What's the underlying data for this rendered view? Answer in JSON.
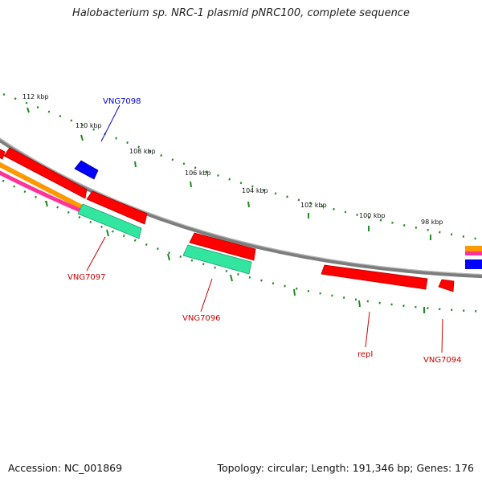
{
  "title": "Halobacterium sp. NRC-1 plasmid pNRC100, complete sequence",
  "footer": {
    "accession": "Accession: NC_001869",
    "summary": "Topology: circular; Length: 191,346 bp; Genes: 176"
  },
  "colors": {
    "backbone": "#888888",
    "forward_gene": "#0000ff",
    "reverse_gene": "#ff0000",
    "rna_feature": "#33e6a0",
    "orange_track": "#ff9900",
    "pink_track": "#ff3399",
    "tick": "#228822",
    "forward_label": "#0000cc",
    "reverse_label": "#cc0000"
  },
  "scale_labels": [
    "112 kbp",
    "110 kbp",
    "108 kbp",
    "106 kbp",
    "104 kbp",
    "102 kbp",
    "100 kbp",
    "98 kbp"
  ],
  "genes": [
    {
      "label": "VNG7098",
      "strand": "forward"
    },
    {
      "label": "VNG7097",
      "strand": "reverse"
    },
    {
      "label": "VNG7096",
      "strand": "reverse"
    },
    {
      "label": "repI",
      "strand": "reverse"
    },
    {
      "label": "VNG7094",
      "strand": "reverse"
    }
  ]
}
